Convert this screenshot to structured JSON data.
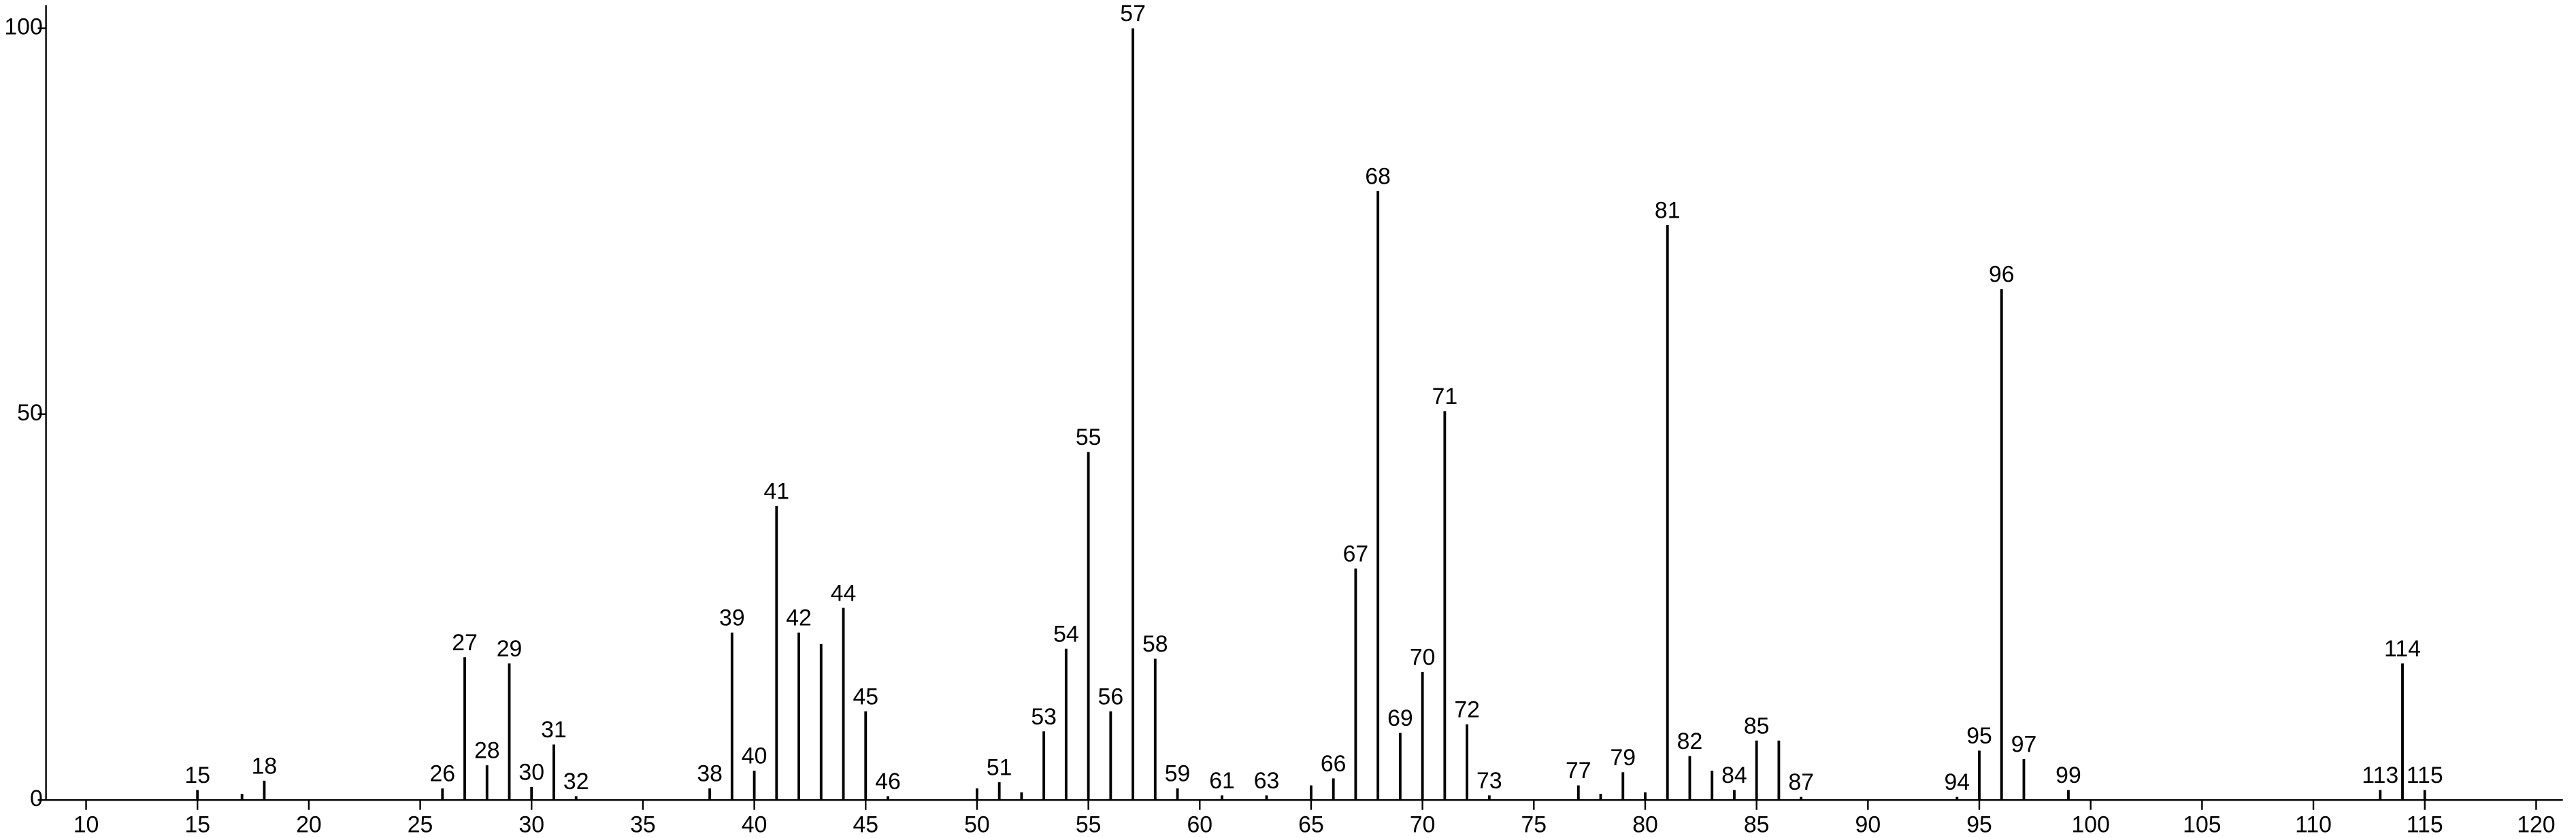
{
  "chart_data": {
    "type": "spectrum",
    "x": [
      15,
      17,
      18,
      26,
      27,
      28,
      29,
      30,
      31,
      32,
      38,
      39,
      40,
      41,
      42,
      43,
      44,
      45,
      46,
      50,
      51,
      52,
      53,
      54,
      55,
      56,
      57,
      58,
      59,
      61,
      63,
      65,
      66,
      67,
      68,
      69,
      70,
      71,
      72,
      73,
      77,
      78,
      79,
      80,
      81,
      82,
      83,
      84,
      85,
      86,
      87,
      94,
      95,
      96,
      97,
      99,
      113,
      114,
      115
    ],
    "values": [
      1.3,
      0.8,
      2.5,
      1.5,
      18.5,
      4.5,
      17.7,
      1.7,
      7.2,
      0.5,
      1.5,
      21.7,
      3.8,
      38.1,
      21.7,
      20.2,
      24.9,
      11.5,
      0.5,
      1.5,
      2.3,
      1.0,
      8.9,
      19.6,
      45.1,
      11.5,
      100,
      18.3,
      1.5,
      0.6,
      0.6,
      1.9,
      2.8,
      30,
      78.9,
      8.7,
      16.6,
      50.4,
      9.8,
      0.6,
      1.9,
      0.8,
      3.6,
      1.0,
      74.5,
      5.7,
      3.8,
      1.3,
      7.7,
      7.7,
      0.4,
      0.4,
      6.4,
      66.2,
      5.3,
      1.3,
      1.3,
      17.7,
      1.3
    ],
    "labels": [
      "15",
      null,
      "18",
      "26",
      "27",
      "28",
      "29",
      "30",
      "31",
      "32",
      "38",
      "39",
      "40",
      "41",
      "42",
      null,
      "44",
      "45",
      "46",
      null,
      "51",
      null,
      "53",
      "54",
      "55",
      "56",
      "57",
      "58",
      "59",
      "61",
      "63",
      null,
      "66",
      "67",
      "68",
      "69",
      "70",
      "71",
      "72",
      "73",
      "77",
      null,
      "79",
      null,
      "81",
      "82",
      null,
      "84",
      "85",
      null,
      "87",
      "94",
      "95",
      "96",
      "97",
      "99",
      "113",
      "114",
      "115"
    ],
    "color": "#000000",
    "xlim": [
      8.2,
      121.2
    ],
    "xticks": [
      10,
      15,
      20,
      25,
      30,
      35,
      40,
      45,
      50,
      55,
      60,
      65,
      70,
      75,
      80,
      85,
      90,
      95,
      100,
      105,
      110,
      115,
      120
    ],
    "ylim": [
      0,
      103
    ],
    "yticks": [
      0,
      50,
      100
    ]
  }
}
